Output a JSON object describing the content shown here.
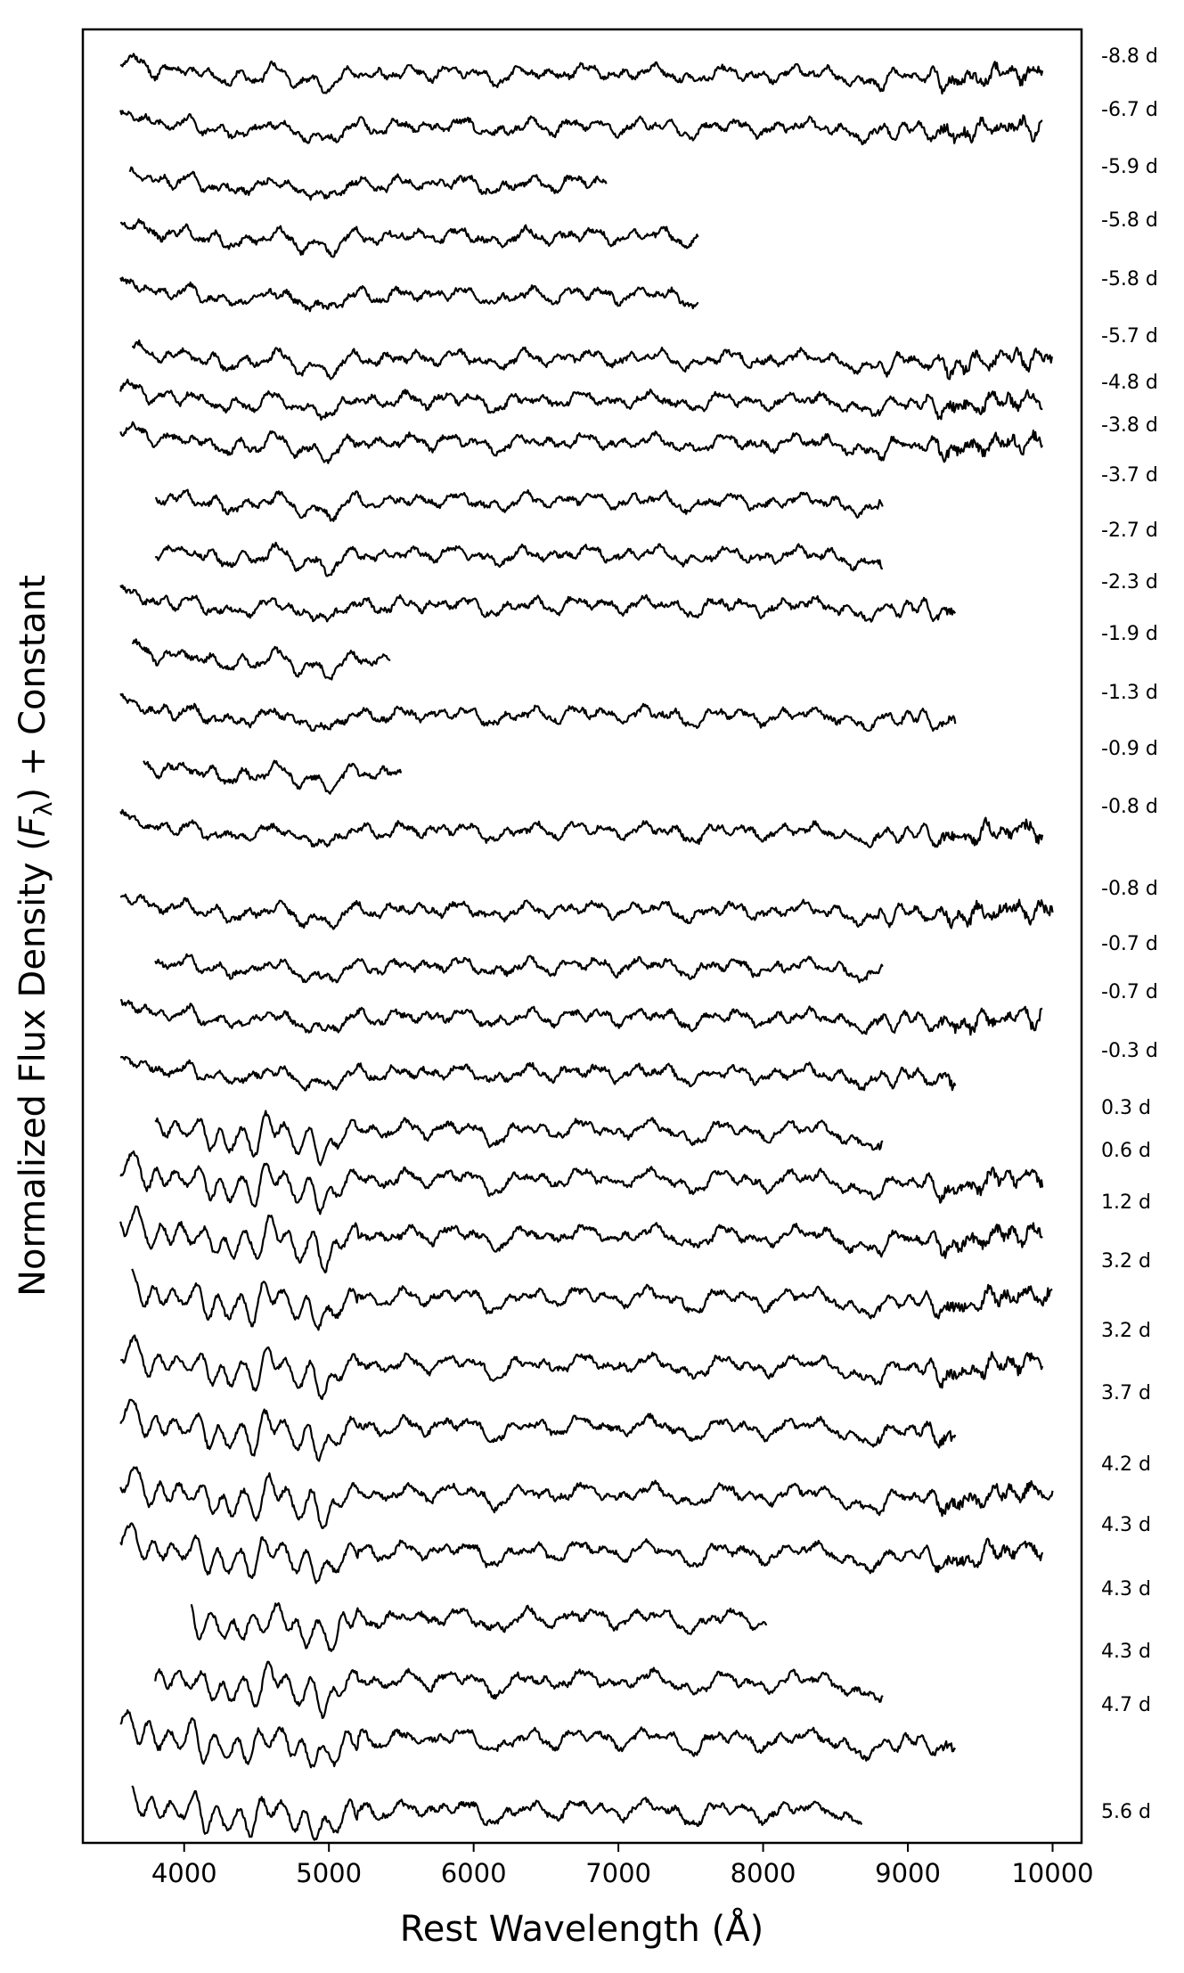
{
  "chart_data": {
    "type": "line",
    "xlabel": "Rest Wavelength (Å)",
    "ylabel": "Normalized Flux Density (F_λ) + Constant",
    "ylabel_parts": [
      "Normalized Flux Density (",
      "F",
      "λ",
      ") + Constant"
    ],
    "xlim": [
      3300,
      10200
    ],
    "xticks": [
      4000,
      5000,
      6000,
      7000,
      8000,
      9000,
      10000
    ],
    "grid": false,
    "legend": "none",
    "series": [
      {
        "label": "-8.8 d",
        "x_range": [
          3560,
          9930
        ]
      },
      {
        "label": "-6.7 d",
        "x_range": [
          3560,
          9930
        ]
      },
      {
        "label": "-5.9 d",
        "x_range": [
          3620,
          6920
        ]
      },
      {
        "label": "-5.8 d",
        "x_range": [
          3560,
          7550
        ]
      },
      {
        "label": "-5.8 d",
        "x_range": [
          3560,
          7550
        ]
      },
      {
        "label": "-5.7 d",
        "x_range": [
          3640,
          10000
        ]
      },
      {
        "label": "-4.8 d",
        "x_range": [
          3560,
          9930
        ]
      },
      {
        "label": "-3.8 d",
        "x_range": [
          3560,
          9930
        ]
      },
      {
        "label": "-3.7 d",
        "x_range": [
          3800,
          8830
        ]
      },
      {
        "label": "-2.7 d",
        "x_range": [
          3800,
          8830
        ]
      },
      {
        "label": "-2.3 d",
        "x_range": [
          3560,
          9330
        ]
      },
      {
        "label": "-1.9 d",
        "x_range": [
          3640,
          5430
        ]
      },
      {
        "label": "-1.3 d",
        "x_range": [
          3560,
          9330
        ]
      },
      {
        "label": "-0.9 d",
        "x_range": [
          3720,
          5500
        ]
      },
      {
        "label": "-0.8 d",
        "x_range": [
          3560,
          9930
        ]
      },
      {
        "label": "-0.8 d",
        "x_range": [
          3560,
          10000
        ]
      },
      {
        "label": "-0.7 d",
        "x_range": [
          3800,
          8830
        ]
      },
      {
        "label": "-0.7 d",
        "x_range": [
          3560,
          9930
        ]
      },
      {
        "label": "-0.3 d",
        "x_range": [
          3560,
          9330
        ]
      },
      {
        "label": "0.3 d",
        "x_range": [
          3800,
          8830
        ]
      },
      {
        "label": "0.6 d",
        "x_range": [
          3560,
          9930
        ]
      },
      {
        "label": "1.2 d",
        "x_range": [
          3560,
          9930
        ]
      },
      {
        "label": "3.2 d",
        "x_range": [
          3640,
          10000
        ]
      },
      {
        "label": "3.2 d",
        "x_range": [
          3560,
          9930
        ]
      },
      {
        "label": "3.7 d",
        "x_range": [
          3560,
          9330
        ]
      },
      {
        "label": "4.2 d",
        "x_range": [
          3560,
          10000
        ]
      },
      {
        "label": "4.3 d",
        "x_range": [
          3560,
          9930
        ]
      },
      {
        "label": "4.3 d",
        "x_range": [
          4050,
          8030
        ]
      },
      {
        "label": "4.3 d",
        "x_range": [
          3800,
          8830
        ]
      },
      {
        "label": "4.7 d",
        "x_range": [
          3560,
          9330
        ]
      },
      {
        "label": "5.6 d",
        "x_range": [
          3640,
          8680
        ]
      }
    ]
  }
}
